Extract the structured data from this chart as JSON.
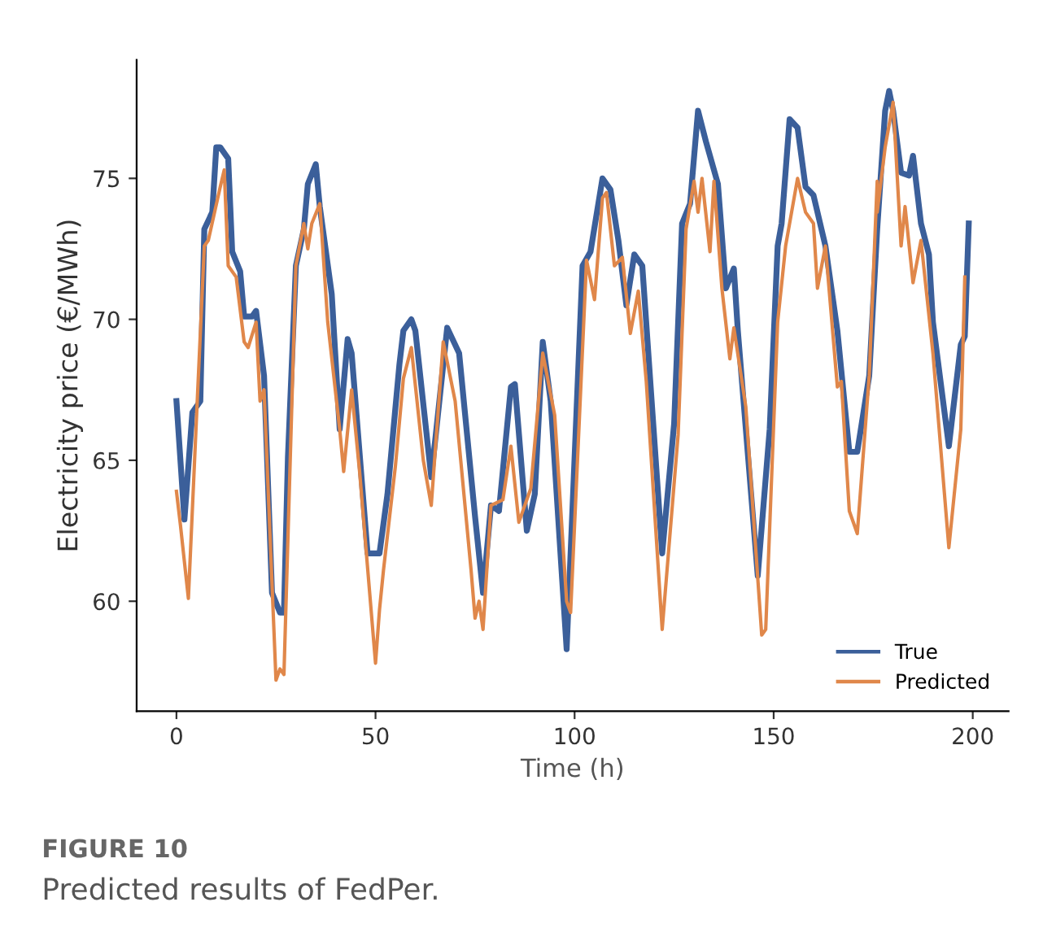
{
  "chart_data": {
    "type": "line",
    "xlabel": "Time (h)",
    "ylabel": "Electricity price (€/MWh)",
    "xlim": [
      -10,
      209
    ],
    "ylim": [
      56.1,
      79.2
    ],
    "xticks": [
      0,
      50,
      100,
      150,
      200
    ],
    "yticks": [
      60,
      65,
      70,
      75
    ],
    "grid": false,
    "legend": "bottom right",
    "line_style": "solid",
    "marker": "none",
    "annotations": [
      "FIGURE 10",
      "Predicted results of FedPer."
    ],
    "series": [
      {
        "name": "True",
        "color": "#3b5f9a",
        "x": [
          0,
          2,
          4,
          6,
          7,
          9,
          10,
          11,
          13,
          14,
          16,
          17,
          19,
          20,
          22,
          24,
          26,
          27,
          28,
          30,
          32,
          33,
          35,
          36,
          39,
          41,
          43,
          44,
          48,
          51,
          53,
          56,
          57,
          59,
          60,
          64,
          68,
          71,
          75,
          77,
          79,
          81,
          84,
          85,
          88,
          90,
          92,
          94,
          98,
          102,
          104,
          107,
          109,
          111,
          113,
          115,
          117,
          122,
          125,
          127,
          129,
          131,
          133,
          136,
          138,
          140,
          141,
          146,
          149,
          151,
          152,
          154,
          156,
          158,
          160,
          163,
          166,
          169,
          171,
          174,
          176,
          178,
          179,
          180,
          182,
          184,
          185,
          187,
          189,
          190,
          194,
          197,
          198,
          199
        ],
        "values": [
          67.1,
          62.9,
          66.7,
          67.1,
          73.2,
          73.8,
          76.1,
          76.1,
          75.7,
          72.4,
          71.7,
          70.1,
          70.1,
          70.3,
          68.0,
          60.3,
          59.6,
          59.6,
          65.1,
          71.9,
          73.2,
          74.8,
          75.5,
          74.0,
          70.9,
          66.1,
          69.3,
          68.8,
          61.7,
          61.7,
          63.8,
          68.4,
          69.6,
          70.0,
          69.6,
          64.4,
          69.7,
          68.8,
          63.0,
          60.3,
          63.4,
          63.2,
          67.6,
          67.7,
          62.5,
          63.8,
          69.2,
          67.1,
          58.3,
          71.9,
          72.4,
          75.0,
          74.6,
          72.8,
          70.5,
          72.3,
          71.9,
          61.7,
          66.3,
          73.4,
          74.1,
          77.4,
          76.3,
          74.8,
          71.1,
          71.8,
          69.6,
          60.9,
          66.1,
          72.6,
          73.4,
          77.1,
          76.8,
          74.7,
          74.4,
          72.6,
          69.6,
          65.3,
          65.3,
          68.0,
          73.2,
          77.4,
          78.1,
          77.4,
          75.2,
          75.1,
          75.8,
          73.4,
          72.3,
          69.9,
          65.5,
          69.1,
          69.4,
          73.4
        ]
      },
      {
        "name": "Predicted",
        "color": "#e0874a",
        "x": [
          0,
          1,
          3,
          5,
          7,
          8,
          11,
          12,
          13,
          15,
          17,
          18,
          20,
          21,
          22,
          25,
          26,
          27,
          30,
          32,
          33,
          34,
          36,
          38,
          41,
          42,
          44,
          46,
          50,
          51,
          52,
          55,
          57,
          59,
          62,
          64,
          67,
          70,
          74,
          75,
          76,
          77,
          79,
          82,
          84,
          86,
          89,
          92,
          95,
          98,
          99,
          103,
          105,
          107,
          108,
          110,
          112,
          114,
          116,
          118,
          122,
          126,
          128,
          130,
          131,
          132,
          134,
          135,
          137,
          139,
          140,
          143,
          147,
          148,
          151,
          153,
          156,
          158,
          160,
          161,
          163,
          166,
          167,
          169,
          171,
          174,
          176,
          176,
          178,
          180,
          182,
          183,
          185,
          187,
          190,
          194,
          197,
          198
        ],
        "values": [
          63.9,
          62.7,
          60.1,
          66.4,
          72.6,
          72.8,
          74.7,
          75.3,
          71.9,
          71.5,
          69.2,
          69.0,
          69.9,
          67.1,
          67.5,
          57.2,
          57.6,
          57.4,
          71.9,
          73.4,
          72.5,
          73.4,
          74.1,
          69.9,
          66.1,
          64.6,
          67.5,
          64.6,
          57.8,
          59.7,
          61.1,
          64.8,
          67.9,
          69.0,
          65.0,
          63.4,
          69.2,
          67.1,
          61.1,
          59.4,
          60.0,
          59.0,
          63.4,
          63.6,
          65.5,
          62.8,
          64.0,
          68.8,
          66.6,
          60.0,
          59.6,
          72.1,
          70.7,
          74.3,
          74.5,
          71.9,
          72.2,
          69.5,
          71.0,
          67.8,
          59.0,
          65.9,
          73.2,
          74.9,
          73.8,
          75.0,
          72.4,
          74.9,
          71.1,
          68.6,
          69.7,
          66.9,
          58.8,
          59.0,
          69.9,
          72.6,
          75.0,
          73.8,
          73.4,
          71.1,
          72.6,
          67.6,
          67.8,
          63.2,
          62.4,
          68.0,
          74.9,
          73.8,
          76.1,
          77.7,
          72.6,
          74.0,
          71.3,
          72.8,
          68.8,
          61.9,
          66.1,
          71.5
        ]
      }
    ]
  }
}
